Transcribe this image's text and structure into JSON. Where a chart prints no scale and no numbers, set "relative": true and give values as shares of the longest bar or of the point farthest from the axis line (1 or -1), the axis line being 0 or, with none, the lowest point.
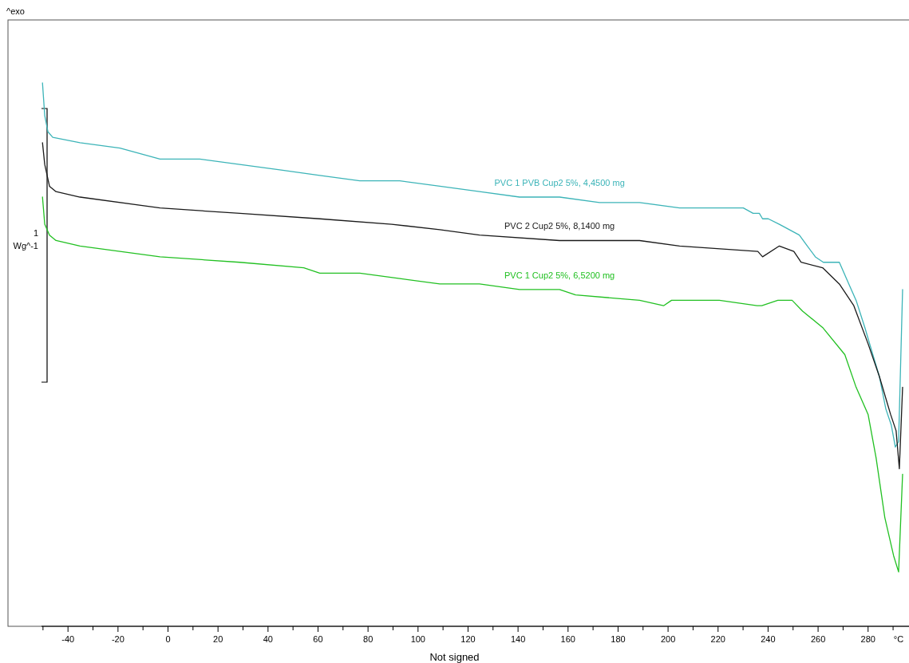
{
  "chart_data": {
    "type": "line",
    "relative": true,
    "xlabel": "°C",
    "annotations": [
      "^exo",
      "1",
      "Wg^-1",
      "Not signed"
    ],
    "xlim": [
      -64,
      297
    ],
    "xticks": [
      {
        "value": -50,
        "label": null
      },
      -40,
      {
        "value": -30,
        "label": null
      },
      -20,
      {
        "value": -10,
        "label": null
      },
      0,
      {
        "value": 10,
        "label": null
      },
      20,
      {
        "value": 30,
        "label": null
      },
      40,
      {
        "value": 50,
        "label": null
      },
      60,
      {
        "value": 70,
        "label": null
      },
      80,
      {
        "value": 90,
        "label": null
      },
      100,
      {
        "value": 110,
        "label": null
      },
      120,
      {
        "value": 130,
        "label": null
      },
      140,
      {
        "value": 150,
        "label": null
      },
      160,
      {
        "value": 170,
        "label": null
      },
      180,
      {
        "value": 190,
        "label": null
      },
      200,
      {
        "value": 210,
        "label": null
      },
      220,
      {
        "value": 230,
        "label": null
      },
      240,
      {
        "value": 250,
        "label": null
      },
      260,
      {
        "value": 270,
        "label": null
      },
      280,
      {
        "value": 290,
        "label": null
      }
    ],
    "series": [
      {
        "name": "PVC 1 PVB Cup2 5%, 4,4500 mg",
        "color": "#3cb4b8",
        "x": [
          -50.2,
          -49.3,
          -48,
          -46.1,
          -35.2,
          -19.2,
          -3.2,
          12.7,
          28.7,
          44.7,
          60.7,
          76.7,
          92.7,
          108.7,
          124.6,
          140.6,
          156.6,
          172.6,
          188.6,
          204.6,
          220.5,
          230.1,
          234,
          236.5,
          237.8,
          240.1,
          244.5,
          252.5,
          255.7,
          258.9,
          262.1,
          265.3,
          268.5,
          272.3,
          275.2,
          278.7,
          281.9,
          284.5,
          287.1,
          289.3,
          290.9,
          292.2,
          293.8
        ],
        "values": [
          1.0,
          0.94,
          0.91,
          0.9,
          0.89,
          0.88,
          0.86,
          0.86,
          0.85,
          0.84,
          0.83,
          0.82,
          0.82,
          0.81,
          0.8,
          0.79,
          0.79,
          0.78,
          0.78,
          0.77,
          0.77,
          0.77,
          0.76,
          0.76,
          0.75,
          0.75,
          0.74,
          0.72,
          0.7,
          0.68,
          0.67,
          0.67,
          0.67,
          0.63,
          0.6,
          0.55,
          0.5,
          0.46,
          0.4,
          0.37,
          0.33,
          0.34,
          0.62
        ]
      },
      {
        "name": "PVC 2 Cup2 5%, 8,1400 mg",
        "color": "#1a1a1a",
        "x": [
          -50.2,
          -49.3,
          -47.4,
          -44.8,
          -35.2,
          -3.2,
          28.7,
          60.7,
          89.5,
          108.7,
          124.6,
          156.6,
          188.6,
          204.6,
          235.9,
          237.8,
          244.5,
          250.3,
          253.2,
          261.8,
          268.5,
          274.3,
          280,
          284.5,
          289,
          291.2,
          292.5,
          293.8
        ],
        "values": [
          0.89,
          0.85,
          0.81,
          0.8,
          0.79,
          0.77,
          0.76,
          0.75,
          0.74,
          0.73,
          0.72,
          0.71,
          0.71,
          0.7,
          0.69,
          0.68,
          0.7,
          0.69,
          0.67,
          0.66,
          0.63,
          0.59,
          0.52,
          0.46,
          0.39,
          0.36,
          0.29,
          0.44
        ]
      },
      {
        "name": "PVC 1 Cup2 5%, 6,5200 mg",
        "color": "#22c022",
        "x": [
          -50.2,
          -49.3,
          -47.4,
          -44.8,
          -35.2,
          -3.2,
          28.7,
          54.3,
          60.7,
          76.7,
          92.7,
          108.7,
          124.6,
          140.6,
          156.6,
          163,
          188.6,
          198.2,
          201.4,
          220.5,
          235.6,
          237.5,
          243.9,
          249.6,
          253.8,
          261.8,
          270.7,
          275.2,
          280,
          283.2,
          286.7,
          290.2,
          292.2,
          293.8
        ],
        "values": [
          0.79,
          0.74,
          0.72,
          0.71,
          0.7,
          0.68,
          0.67,
          0.66,
          0.65,
          0.65,
          0.64,
          0.63,
          0.63,
          0.62,
          0.62,
          0.61,
          0.6,
          0.59,
          0.6,
          0.6,
          0.59,
          0.59,
          0.6,
          0.6,
          0.58,
          0.55,
          0.5,
          0.44,
          0.39,
          0.31,
          0.2,
          0.13,
          0.1,
          0.28
        ]
      }
    ]
  }
}
